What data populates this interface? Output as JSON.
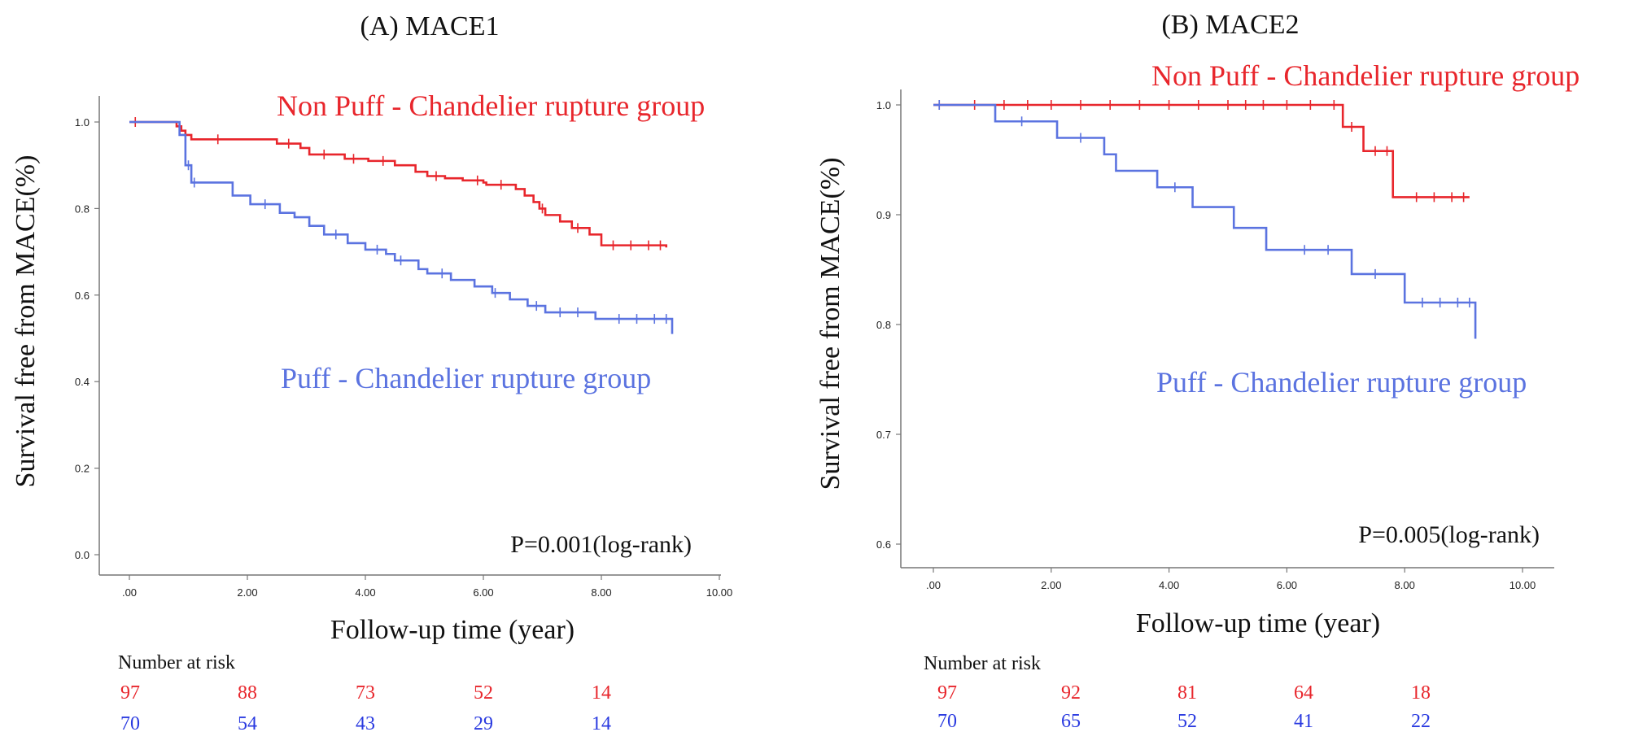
{
  "chart_data": [
    {
      "type": "line",
      "title": "(A) MACE1",
      "xlabel": "Follow-up time (year)",
      "ylabel": "Survival free from MACE(%)",
      "xlim": [
        0,
        10
      ],
      "ylim": [
        0,
        1
      ],
      "x_ticks": [
        ".00",
        "2.00",
        "4.00",
        "6.00",
        "8.00",
        "10.00"
      ],
      "y_ticks": [
        "0.0",
        "0.2",
        "0.4",
        "0.6",
        "0.8",
        "1.0"
      ],
      "series": [
        {
          "name": "Non Puff - Chandelier rupture group",
          "color": "#e8262c",
          "x": [
            0,
            0.75,
            0.8,
            0.88,
            0.95,
            1.05,
            2.15,
            2.5,
            2.9,
            3.05,
            3.5,
            3.65,
            4.0,
            4.05,
            4.5,
            4.85,
            5.05,
            5.35,
            5.65,
            6.0,
            6.05,
            6.55,
            6.7,
            6.85,
            6.95,
            7.05,
            7.3,
            7.5,
            7.8,
            8.0,
            9.1
          ],
          "y": [
            1.0,
            1.0,
            0.99,
            0.98,
            0.97,
            0.96,
            0.96,
            0.95,
            0.94,
            0.925,
            0.925,
            0.915,
            0.915,
            0.91,
            0.9,
            0.885,
            0.875,
            0.87,
            0.865,
            0.86,
            0.855,
            0.845,
            0.83,
            0.815,
            0.8,
            0.785,
            0.77,
            0.755,
            0.74,
            0.715,
            0.71
          ],
          "censors": [
            0.1,
            1.5,
            2.7,
            3.3,
            3.8,
            4.3,
            5.2,
            5.9,
            6.3,
            7.0,
            7.6,
            8.2,
            8.5,
            8.8,
            9.0
          ]
        },
        {
          "name": "Puff - Chandelier rupture group",
          "color": "#5b73e0",
          "x": [
            0,
            0.75,
            0.85,
            0.95,
            1.05,
            1.55,
            1.75,
            2.05,
            2.55,
            2.8,
            3.05,
            3.3,
            3.7,
            4.0,
            4.35,
            4.5,
            4.9,
            5.05,
            5.45,
            5.85,
            6.15,
            6.45,
            6.75,
            7.05,
            7.9,
            9.2
          ],
          "y": [
            1.0,
            1.0,
            0.97,
            0.9,
            0.86,
            0.86,
            0.83,
            0.81,
            0.79,
            0.78,
            0.76,
            0.74,
            0.72,
            0.705,
            0.695,
            0.68,
            0.66,
            0.65,
            0.635,
            0.62,
            0.605,
            0.59,
            0.575,
            0.56,
            0.545,
            0.51
          ],
          "censors": [
            1.0,
            1.1,
            2.3,
            3.5,
            4.2,
            4.6,
            5.3,
            6.2,
            6.9,
            7.3,
            7.6,
            8.3,
            8.6,
            8.9,
            9.1
          ]
        }
      ],
      "annotation": "P=0.001(log-rank)",
      "risk_table": {
        "label": "Number at risk",
        "red": [
          "97",
          "88",
          "73",
          "52",
          "14"
        ],
        "blue": [
          "70",
          "54",
          "43",
          "29",
          "14"
        ]
      }
    },
    {
      "type": "line",
      "title": "(B) MACE2",
      "xlabel": "Follow-up time (year)",
      "ylabel": "Survival free from MACE(%)",
      "xlim": [
        0,
        10
      ],
      "ylim": [
        0.6,
        1.0
      ],
      "x_ticks": [
        ".00",
        "2.00",
        "4.00",
        "6.00",
        "8.00",
        "10.00"
      ],
      "y_ticks": [
        "0.6",
        "0.7",
        "0.8",
        "0.9",
        "1.0"
      ],
      "series": [
        {
          "name": "Non Puff - Chandelier rupture group",
          "color": "#e8262c",
          "x": [
            0,
            6.95,
            7.3,
            7.8,
            9.1
          ],
          "y": [
            1.0,
            0.98,
            0.958,
            0.916,
            0.916
          ],
          "censors": [
            0.1,
            0.7,
            1.2,
            1.6,
            2.0,
            2.5,
            3.0,
            3.5,
            4.0,
            4.5,
            5.0,
            5.3,
            5.6,
            6.0,
            6.4,
            6.8,
            7.1,
            7.5,
            7.7,
            8.2,
            8.5,
            8.8,
            9.0
          ]
        },
        {
          "name": "Puff - Chandelier rupture group",
          "color": "#5b73e0",
          "x": [
            0,
            1.05,
            2.1,
            2.9,
            3.1,
            3.8,
            4.4,
            5.1,
            5.65,
            7.1,
            8.0,
            9.2
          ],
          "y": [
            1.0,
            0.985,
            0.97,
            0.955,
            0.94,
            0.925,
            0.907,
            0.888,
            0.868,
            0.846,
            0.82,
            0.787
          ],
          "censors": [
            0.1,
            1.5,
            2.5,
            4.1,
            6.3,
            6.7,
            7.5,
            8.3,
            8.6,
            8.9,
            9.1
          ]
        }
      ],
      "annotation": "P=0.005(log-rank)",
      "risk_table": {
        "label": "Number at risk",
        "red": [
          "97",
          "92",
          "81",
          "64",
          "18"
        ],
        "blue": [
          "70",
          "65",
          "52",
          "41",
          "22"
        ]
      }
    }
  ]
}
